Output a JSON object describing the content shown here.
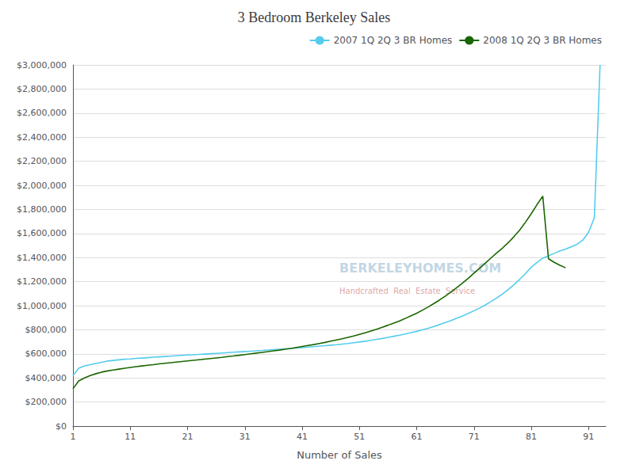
{
  "chart_data": {
    "type": "line",
    "title": "3 Bedroom Berkeley Sales",
    "xlabel": "Number of Sales",
    "annotations": [
      "BERKELEYHOMES.COM",
      "Handcrafted  Real  Estate  Service"
    ],
    "legend": "upper right",
    "grid": "y",
    "xlim": [
      1,
      94
    ],
    "xticks": [
      1,
      11,
      21,
      31,
      41,
      51,
      61,
      71,
      81,
      91
    ],
    "ylim": [
      0,
      3000000
    ],
    "yticks": [
      {
        "value": 0,
        "label": "$0"
      },
      {
        "value": 200000,
        "label": "$200,000"
      },
      {
        "value": 400000,
        "label": "$400,000"
      },
      {
        "value": 600000,
        "label": "$600,000"
      },
      {
        "value": 800000,
        "label": "$800,000"
      },
      {
        "value": 1000000,
        "label": "$1,000,000"
      },
      {
        "value": 1200000,
        "label": "$1,200,000"
      },
      {
        "value": 1400000,
        "label": "$1,400,000"
      },
      {
        "value": 1600000,
        "label": "$1,600,000"
      },
      {
        "value": 1800000,
        "label": "$1,800,000"
      },
      {
        "value": 2000000,
        "label": "$2,000,000"
      },
      {
        "value": 2200000,
        "label": "$2,200,000"
      },
      {
        "value": 2400000,
        "label": "$2,400,000"
      },
      {
        "value": 2600000,
        "label": "$2,600,000"
      },
      {
        "value": 2800000,
        "label": "$2,800,000"
      },
      {
        "value": 3000000,
        "label": "$3,000,000"
      }
    ],
    "series": [
      {
        "name": "2007 1Q 2Q 3 BR Homes",
        "color": "#55CCEE",
        "x": [
          1,
          2,
          3,
          4,
          5,
          6,
          7,
          8,
          9,
          10,
          11,
          12,
          13,
          14,
          15,
          16,
          17,
          18,
          19,
          20,
          21,
          22,
          23,
          24,
          25,
          26,
          27,
          28,
          29,
          30,
          31,
          32,
          33,
          34,
          35,
          36,
          37,
          38,
          39,
          40,
          41,
          42,
          43,
          44,
          45,
          46,
          47,
          48,
          49,
          50,
          51,
          52,
          53,
          54,
          55,
          56,
          57,
          58,
          59,
          60,
          61,
          62,
          63,
          64,
          65,
          66,
          67,
          68,
          69,
          70,
          71,
          72,
          73,
          74,
          75,
          76,
          77,
          78,
          79,
          80,
          81,
          82,
          83,
          84,
          85,
          86,
          87,
          88,
          89,
          90,
          91,
          92,
          93
        ],
        "values": [
          420000,
          480000,
          500000,
          510000,
          520000,
          530000,
          540000,
          545000,
          550000,
          555000,
          558000,
          562000,
          565000,
          568000,
          572000,
          575000,
          578000,
          581000,
          584000,
          587000,
          590000,
          592000,
          595000,
          598000,
          601000,
          604000,
          607000,
          610000,
          613000,
          616000,
          619000,
          622000,
          625000,
          628000,
          632000,
          635000,
          638000,
          641000,
          645000,
          648000,
          652000,
          656000,
          660000,
          664000,
          668000,
          672000,
          676000,
          681000,
          686000,
          692000,
          698000,
          705000,
          712000,
          720000,
          728000,
          737000,
          746000,
          755000,
          765000,
          776000,
          787000,
          800000,
          813000,
          828000,
          843000,
          860000,
          877000,
          896000,
          915000,
          936000,
          958000,
          981000,
          1007000,
          1035000,
          1065000,
          1098000,
          1135000,
          1175000,
          1220000,
          1268000,
          1320000,
          1360000,
          1395000,
          1415000,
          1435000,
          1455000,
          1470000,
          1490000,
          1510000,
          1545000,
          1610000,
          1730000,
          3000000
        ]
      },
      {
        "name": "2008 1Q 2Q 3 BR Homes",
        "color": "#1A6600",
        "x": [
          1,
          2,
          3,
          4,
          5,
          6,
          7,
          8,
          9,
          10,
          11,
          12,
          13,
          14,
          15,
          16,
          17,
          18,
          19,
          20,
          21,
          22,
          23,
          24,
          25,
          26,
          27,
          28,
          29,
          30,
          31,
          32,
          33,
          34,
          35,
          36,
          37,
          38,
          39,
          40,
          41,
          42,
          43,
          44,
          45,
          46,
          47,
          48,
          49,
          50,
          51,
          52,
          53,
          54,
          55,
          56,
          57,
          58,
          59,
          60,
          61,
          62,
          63,
          64,
          65,
          66,
          67,
          68,
          69,
          70,
          71,
          72,
          73,
          74,
          75,
          76,
          77,
          78,
          79,
          80,
          81,
          82,
          83,
          84,
          85,
          86,
          87
        ],
        "values": [
          310000,
          375000,
          400000,
          420000,
          435000,
          448000,
          458000,
          466000,
          473000,
          480000,
          487000,
          493000,
          499000,
          505000,
          510000,
          516000,
          521000,
          526000,
          531000,
          536000,
          541000,
          546000,
          551000,
          556000,
          561000,
          566000,
          571000,
          577000,
          582000,
          588000,
          594000,
          600000,
          606000,
          612000,
          618000,
          625000,
          631000,
          638000,
          645000,
          653000,
          661000,
          669000,
          677000,
          686000,
          695000,
          705000,
          715000,
          725000,
          737000,
          749000,
          762000,
          775000,
          790000,
          805000,
          821000,
          838000,
          856000,
          874000,
          894000,
          916000,
          938000,
          963000,
          989000,
          1018000,
          1048000,
          1080000,
          1114000,
          1150000,
          1188000,
          1228000,
          1270000,
          1312000,
          1355000,
          1398000,
          1440000,
          1480000,
          1525000,
          1575000,
          1630000,
          1695000,
          1765000,
          1840000,
          1910000,
          1390000,
          1360000,
          1335000,
          1315000
        ]
      }
    ]
  }
}
